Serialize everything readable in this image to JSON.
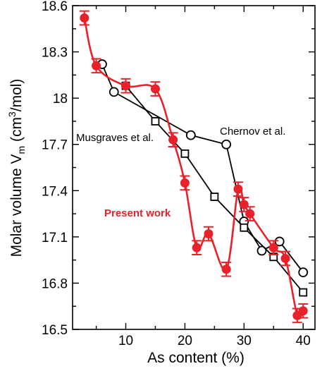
{
  "chart_data": {
    "type": "line",
    "xlabel": "As content (%)",
    "ylabel": {
      "prefix": "Molar volume V",
      "sub": "m",
      "unit_pre": " (cm",
      "sup": "3",
      "unit_post": "/mol)"
    },
    "xlim": [
      1,
      42
    ],
    "ylim": [
      16.5,
      18.6
    ],
    "xticks": [
      10,
      20,
      30,
      40
    ],
    "yticks": [
      16.5,
      16.8,
      17.1,
      17.4,
      17.7,
      18,
      18.3,
      18.6
    ],
    "xtick_labels": [
      "10",
      "20",
      "30",
      "40"
    ],
    "ytick_labels": [
      "16.5",
      "16.8",
      "17.1",
      "17.4",
      "17.7",
      "18",
      "18.3",
      "18.6"
    ],
    "grid": false,
    "series": [
      {
        "name": "Present work",
        "color": "#e8212a",
        "marker": "filled-circle",
        "x": [
          3,
          5,
          10,
          15,
          18,
          20,
          22,
          24,
          27,
          29,
          30,
          31,
          35,
          37,
          39,
          40
        ],
        "y": [
          18.52,
          18.21,
          18.08,
          18.06,
          17.73,
          17.45,
          17.03,
          17.12,
          16.89,
          17.41,
          17.31,
          17.25,
          17.03,
          16.96,
          16.59,
          16.62
        ],
        "err": [
          0.045,
          0.045,
          0.045,
          0.045,
          0.045,
          0.045,
          0.045,
          0.045,
          0.045,
          0.045,
          0.045,
          0.045,
          0.045,
          0.045,
          0.045,
          0.045
        ]
      },
      {
        "name": "Chernov et al.",
        "color": "#000000",
        "marker": "open-circle",
        "x": [
          6,
          8,
          21,
          27,
          30,
          33,
          36,
          40
        ],
        "y": [
          18.22,
          18.04,
          17.76,
          17.7,
          17.2,
          17.01,
          17.07,
          16.87
        ]
      },
      {
        "name": "Musgraves et al.",
        "color": "#000000",
        "marker": "open-square",
        "x": [
          10,
          15,
          20,
          25,
          30,
          35,
          40
        ],
        "y": [
          18.08,
          17.85,
          17.64,
          17.36,
          17.16,
          16.97,
          16.74
        ]
      }
    ],
    "annotations": [
      {
        "text": "Chernov et al.",
        "color": "#000000",
        "bold": false
      },
      {
        "text": "Musgraves et al.",
        "color": "#000000",
        "bold": false
      },
      {
        "text": "Present work",
        "color": "#e8212a",
        "bold": true
      }
    ]
  }
}
